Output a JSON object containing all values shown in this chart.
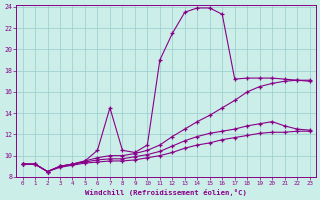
{
  "xlabel": "Windchill (Refroidissement éolien,°C)",
  "bg_color": "#cceee8",
  "line_color": "#880088",
  "grid_color": "#99cccc",
  "xlim": [
    -0.5,
    23.5
  ],
  "ylim": [
    8,
    24.2
  ],
  "xticks": [
    0,
    1,
    2,
    3,
    4,
    5,
    6,
    7,
    8,
    9,
    10,
    11,
    12,
    13,
    14,
    15,
    16,
    17,
    18,
    19,
    20,
    21,
    22,
    23
  ],
  "yticks": [
    8,
    10,
    12,
    14,
    16,
    18,
    20,
    22,
    24
  ],
  "series": [
    {
      "x": [
        0,
        1,
        2,
        3,
        4,
        5,
        6,
        7,
        8,
        9,
        10,
        11,
        12,
        13,
        14,
        15,
        16,
        17,
        18,
        19,
        20,
        21,
        22,
        23
      ],
      "y": [
        9.2,
        9.2,
        8.5,
        9.0,
        9.2,
        9.5,
        10.5,
        14.5,
        10.5,
        10.3,
        11.0,
        19.0,
        21.5,
        23.5,
        23.9,
        23.9,
        23.3,
        17.2,
        17.3,
        17.3,
        17.3,
        17.2,
        17.1,
        17.1
      ]
    },
    {
      "x": [
        0,
        1,
        2,
        3,
        4,
        5,
        6,
        7,
        8,
        9,
        10,
        11,
        12,
        13,
        14,
        15,
        16,
        17,
        18,
        19,
        20,
        21,
        22,
        23
      ],
      "y": [
        9.2,
        9.2,
        8.5,
        9.0,
        9.2,
        9.5,
        9.8,
        10.0,
        10.0,
        10.2,
        10.5,
        11.0,
        11.8,
        12.5,
        13.2,
        13.8,
        14.5,
        15.2,
        16.0,
        16.5,
        16.8,
        17.0,
        17.1,
        17.0
      ]
    },
    {
      "x": [
        0,
        1,
        2,
        3,
        4,
        5,
        6,
        7,
        8,
        9,
        10,
        11,
        12,
        13,
        14,
        15,
        16,
        17,
        18,
        19,
        20,
        21,
        22,
        23
      ],
      "y": [
        9.2,
        9.2,
        8.5,
        9.0,
        9.2,
        9.4,
        9.6,
        9.7,
        9.7,
        9.9,
        10.1,
        10.4,
        10.9,
        11.4,
        11.8,
        12.1,
        12.3,
        12.5,
        12.8,
        13.0,
        13.2,
        12.8,
        12.5,
        12.4
      ]
    },
    {
      "x": [
        0,
        1,
        2,
        3,
        4,
        5,
        6,
        7,
        8,
        9,
        10,
        11,
        12,
        13,
        14,
        15,
        16,
        17,
        18,
        19,
        20,
        21,
        22,
        23
      ],
      "y": [
        9.2,
        9.2,
        8.5,
        8.9,
        9.1,
        9.3,
        9.4,
        9.5,
        9.5,
        9.6,
        9.8,
        10.0,
        10.3,
        10.7,
        11.0,
        11.2,
        11.5,
        11.7,
        11.9,
        12.1,
        12.2,
        12.2,
        12.3,
        12.3
      ]
    }
  ]
}
